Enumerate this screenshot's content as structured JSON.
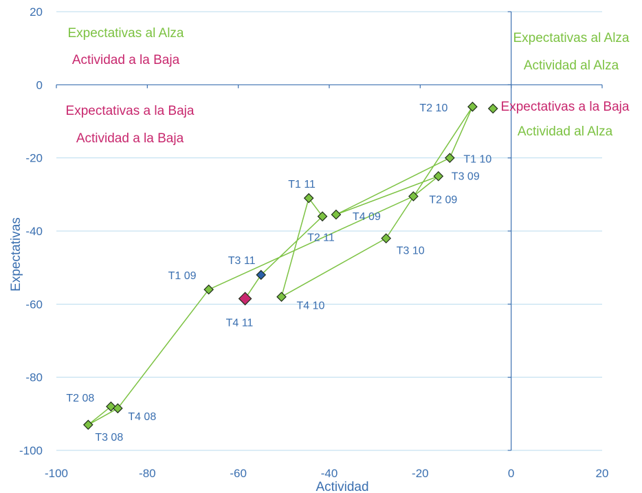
{
  "chart_data": {
    "type": "scatter",
    "xlabel": "Actividad",
    "ylabel": "Expectativas",
    "xlim": [
      -100,
      20
    ],
    "ylim": [
      -100,
      20
    ],
    "xticks": [
      -100,
      -80,
      -60,
      -40,
      -20,
      0,
      20
    ],
    "yticks": [
      -100,
      -80,
      -60,
      -40,
      -20,
      0,
      20
    ],
    "x_tick_labels": [
      "-100",
      "-80",
      "-60",
      "-40",
      "-20",
      "0",
      "20"
    ],
    "y_tick_labels": [
      "-100",
      "-80",
      "-60",
      "-40",
      "-20",
      "0",
      "20"
    ],
    "grid": "horizontal",
    "colors": {
      "axis": "#3a6fb0",
      "grid": "#b8dbee",
      "line": "#7cc242",
      "marker_default": "#7cc242",
      "marker_t311": "#2a5fa8",
      "marker_t411": "#c8286e",
      "quad_green": "#7cc242",
      "quad_magenta": "#c8286e"
    },
    "points": [
      {
        "label": "T2 08",
        "x": -88,
        "y": -88
      },
      {
        "label": "T3 08",
        "x": -93,
        "y": -93
      },
      {
        "label": "T4 08",
        "x": -86.5,
        "y": -88.5
      },
      {
        "label": "T1 09",
        "x": -66.5,
        "y": -56
      },
      {
        "label": "T2 09",
        "x": -21.5,
        "y": -30.5
      },
      {
        "label": "T3 09",
        "x": -16,
        "y": -25
      },
      {
        "label": "T4 09",
        "x": -38.5,
        "y": -35.5
      },
      {
        "label": "T1 10",
        "x": -13.5,
        "y": -20
      },
      {
        "label": "T2 10",
        "x": -8.5,
        "y": -6
      },
      {
        "label": "T3 10",
        "x": -27.5,
        "y": -42
      },
      {
        "label": "T4 10",
        "x": -50.5,
        "y": -58
      },
      {
        "label": "T1 11",
        "x": -44.5,
        "y": -31
      },
      {
        "label": "T2 11",
        "x": -41.5,
        "y": -36
      },
      {
        "label": "T3 11",
        "x": -55,
        "y": -52
      },
      {
        "label": "T4 11",
        "x": -58.5,
        "y": -58.5
      }
    ],
    "extra_marker": {
      "x": -4,
      "y": -6.5
    },
    "highlighted_labels": {
      "T3 11": "#2a5fa8",
      "T4 11": "#c8286e"
    },
    "quadrant_labels": [
      {
        "line1": "Expectativas al Alza",
        "line2": "Actividad a la Baja",
        "color1": "#7cc242",
        "color2": "#c8286e"
      },
      {
        "line1": "Expectativas al Alza",
        "line2": "Actividad al Alza",
        "color1": "#7cc242",
        "color2": "#7cc242"
      },
      {
        "line1": "Expectativas a la Baja",
        "line2": "Actividad a la Baja",
        "color1": "#c8286e",
        "color2": "#c8286e"
      },
      {
        "line1": "Expectativas a la Baja",
        "line2": "Actividad al Alza",
        "color1": "#c8286e",
        "color2": "#7cc242"
      }
    ]
  }
}
